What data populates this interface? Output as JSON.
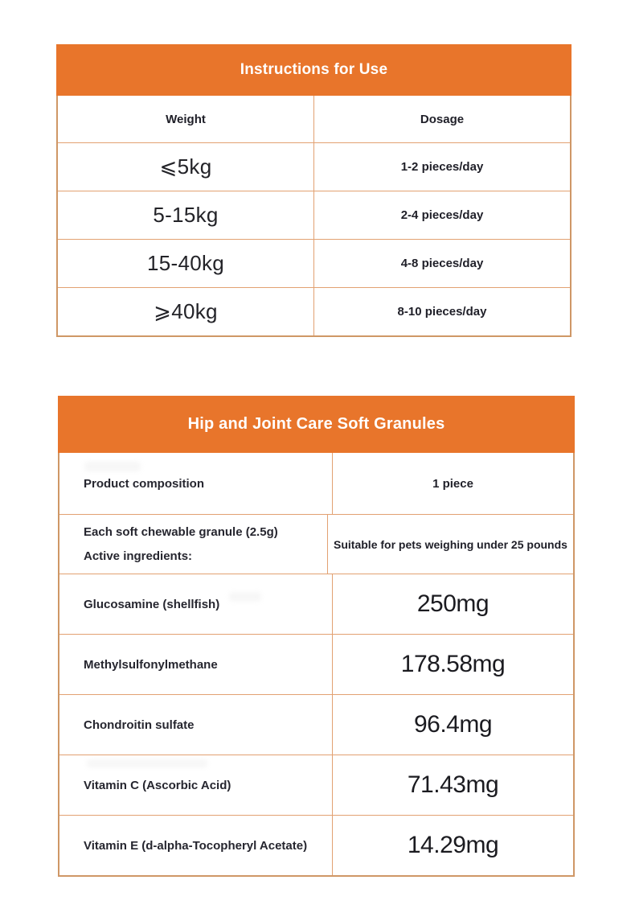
{
  "colors": {
    "accent_orange": "#e8752b",
    "outer_border": "#cf9766",
    "inner_border": "#e2a172",
    "header_text": "#ffffff",
    "text_dark": "#1f1f28"
  },
  "instructions_table": {
    "title": "Instructions for Use",
    "columns": [
      "Weight",
      "Dosage"
    ],
    "rows": [
      {
        "weight": "⩽5kg",
        "dosage": "1-2 pieces/day"
      },
      {
        "weight": "5-15kg",
        "dosage": "2-4 pieces/day"
      },
      {
        "weight": "15-40kg",
        "dosage": "4-8 pieces/day"
      },
      {
        "weight": "⩾40kg",
        "dosage": "8-10 pieces/day"
      }
    ]
  },
  "composition_table": {
    "title": "Hip and Joint Care Soft Granules",
    "header_row": {
      "left": "Product composition",
      "right": "1 piece"
    },
    "note_row": {
      "left_lines": [
        "Each soft chewable granule (2.5g)",
        "Active ingredients:"
      ],
      "right": "Suitable for pets weighing under 25 pounds"
    },
    "ingredients": [
      {
        "name": "Glucosamine (shellfish)",
        "amount": "250mg"
      },
      {
        "name": "Methylsulfonylmethane",
        "amount": "178.58mg"
      },
      {
        "name": "Chondroitin sulfate",
        "amount": "96.4mg"
      },
      {
        "name": "Vitamin C (Ascorbic Acid)",
        "amount": "71.43mg"
      },
      {
        "name": "Vitamin E (d-alpha-Tocopheryl Acetate)",
        "amount": "14.29mg"
      }
    ]
  }
}
